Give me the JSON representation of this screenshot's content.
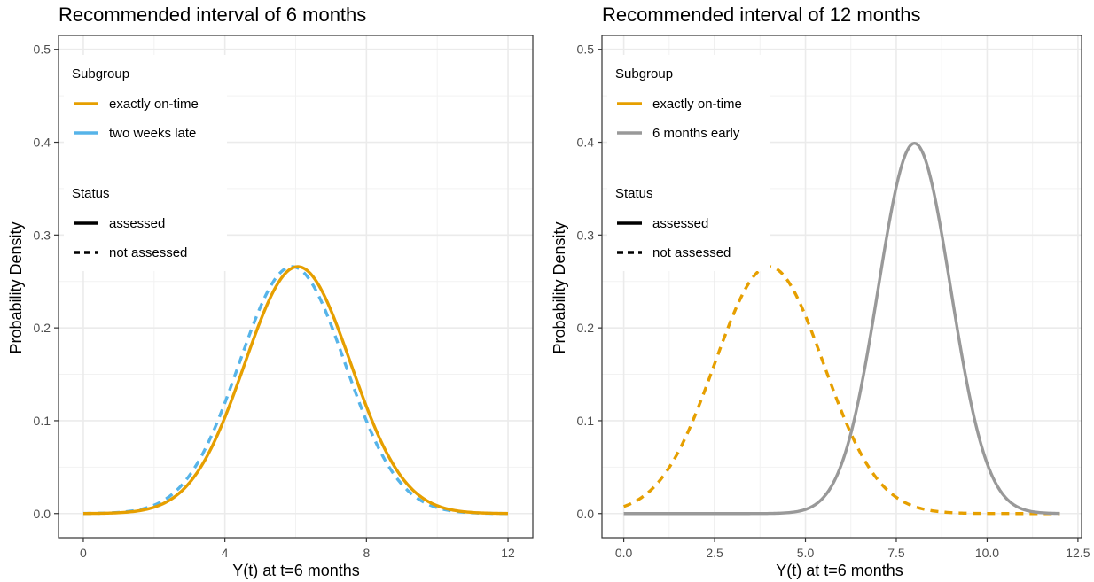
{
  "chart_data": [
    {
      "type": "line",
      "title": "Recommended interval of 6 months",
      "xlabel": "Y(t) at t=6 months",
      "ylabel": "Probability Density",
      "xlim": [
        -0.7,
        12.7
      ],
      "ylim": [
        -0.026,
        0.515
      ],
      "xticks": [
        0,
        4,
        8,
        12
      ],
      "xtick_labels": [
        "0",
        "4",
        "8",
        "12"
      ],
      "yticks": [
        0.0,
        0.1,
        0.2,
        0.3,
        0.4,
        0.5
      ],
      "ytick_labels": [
        "0.0",
        "0.1",
        "0.2",
        "0.3",
        "0.4",
        "0.5"
      ],
      "grid": true,
      "legend_position": "top-left",
      "legend": {
        "subgroup_title": "Subgroup",
        "subgroup_items": [
          {
            "label": "exactly on-time",
            "color": "#E69F00"
          },
          {
            "label": "two weeks late",
            "color": "#56B4E9"
          }
        ],
        "status_title": "Status",
        "status_items": [
          {
            "label": "assessed",
            "style": "solid"
          },
          {
            "label": "not assessed",
            "style": "dashed"
          }
        ]
      },
      "series": [
        {
          "subgroup": "two weeks late",
          "status": "not assessed",
          "color": "#56B4E9",
          "style": "dashed",
          "distribution": "normal",
          "mean": 5.9,
          "sd": 1.5,
          "x_range": [
            0,
            12
          ]
        },
        {
          "subgroup": "exactly on-time",
          "status": "assessed",
          "color": "#E69F00",
          "style": "solid",
          "distribution": "normal",
          "mean": 6.06,
          "sd": 1.5,
          "x_range": [
            0,
            12
          ]
        }
      ]
    },
    {
      "type": "line",
      "title": "Recommended interval of 12 months",
      "xlabel": "Y(t) at t=6 months",
      "ylabel": "Probability Density",
      "xlim": [
        -0.6,
        12.6
      ],
      "ylim": [
        -0.026,
        0.515
      ],
      "xticks": [
        0,
        2.5,
        5,
        7.5,
        10,
        12.5
      ],
      "xtick_labels": [
        "0.0",
        "2.5",
        "5.0",
        "7.5",
        "10.0",
        "12.5"
      ],
      "yticks": [
        0.0,
        0.1,
        0.2,
        0.3,
        0.4,
        0.5
      ],
      "ytick_labels": [
        "0.0",
        "0.1",
        "0.2",
        "0.3",
        "0.4",
        "0.5"
      ],
      "grid": true,
      "legend_position": "top-left",
      "legend": {
        "subgroup_title": "Subgroup",
        "subgroup_items": [
          {
            "label": "exactly on-time",
            "color": "#E69F00"
          },
          {
            "label": "6 months early",
            "color": "#999999"
          }
        ],
        "status_title": "Status",
        "status_items": [
          {
            "label": "assessed",
            "style": "solid"
          },
          {
            "label": "not assessed",
            "style": "dashed"
          }
        ]
      },
      "series": [
        {
          "subgroup": "exactly on-time",
          "status": "not assessed",
          "color": "#E69F00",
          "style": "dashed",
          "distribution": "normal",
          "mean": 4.0,
          "sd": 1.5,
          "x_range": [
            0,
            12
          ]
        },
        {
          "subgroup": "6 months early",
          "status": "assessed",
          "color": "#999999",
          "style": "solid",
          "distribution": "normal",
          "mean": 8.0,
          "sd": 1.0,
          "x_range": [
            0,
            12
          ]
        }
      ]
    }
  ]
}
